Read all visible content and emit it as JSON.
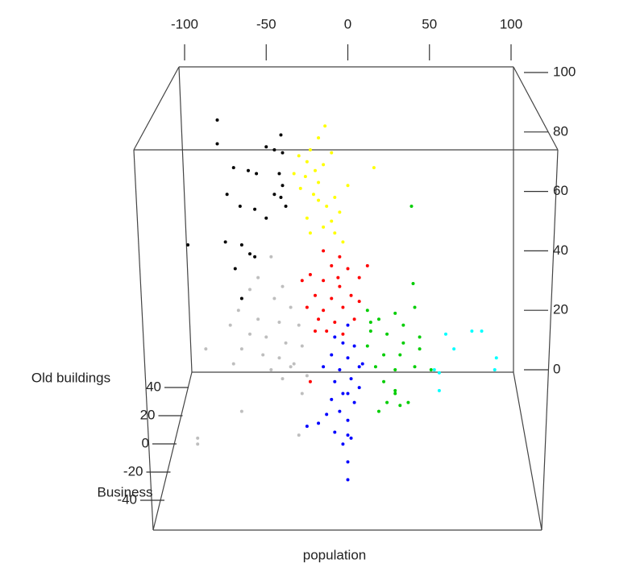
{
  "chart_data": {
    "type": "scatter3d",
    "xlabel": "population",
    "ylabel": "Business",
    "zlabel": "Old buildings",
    "xlim": [
      -100,
      100
    ],
    "xticks": [
      -100,
      -50,
      0,
      50,
      100
    ],
    "ylim": [
      -40,
      40
    ],
    "yticks": [
      40,
      20,
      0,
      -20,
      -40
    ],
    "zlim": [
      0,
      100
    ],
    "zticks": [
      0,
      20,
      40,
      60,
      80,
      100
    ],
    "series": [
      {
        "color": "#000000",
        "x": [
          -80,
          -80,
          -41,
          -50,
          -45,
          -40,
          -70,
          -61,
          -56,
          -42,
          -40,
          -74,
          -66,
          -57,
          -45,
          -41,
          -50,
          -75,
          -65,
          -57,
          -69,
          -98,
          -65,
          -60,
          -38
        ],
        "values": [
          84,
          76,
          79,
          75,
          74,
          73,
          68,
          67,
          66,
          66,
          62,
          59,
          55,
          54,
          59,
          58,
          51,
          43,
          42,
          38,
          34,
          42,
          24,
          39,
          55
        ]
      },
      {
        "color": "#ffff00",
        "x": [
          -14,
          -18,
          -23,
          -30,
          -25,
          -33,
          -26,
          -20,
          -15,
          -10,
          -29,
          -21,
          -18,
          -13,
          -8,
          -5,
          -10,
          -15,
          -23,
          -8,
          -3,
          -25,
          16,
          0,
          -18
        ],
        "values": [
          82,
          78,
          74,
          72,
          70,
          66,
          65,
          67,
          69,
          73,
          61,
          59,
          57,
          55,
          58,
          53,
          50,
          48,
          46,
          46,
          43,
          51,
          68,
          62,
          63
        ]
      },
      {
        "color": "#ff0000",
        "x": [
          -15,
          -5,
          -10,
          -23,
          0,
          7,
          -15,
          -5,
          -20,
          -10,
          2,
          12,
          -25,
          -15,
          -3,
          7,
          -18,
          -8,
          4,
          -13,
          -20,
          -28,
          -3,
          -23,
          -6
        ],
        "values": [
          40,
          38,
          35,
          32,
          34,
          31,
          30,
          28,
          25,
          24,
          25,
          35,
          21,
          20,
          21,
          23,
          17,
          16,
          17,
          13,
          13,
          30,
          12,
          -4,
          31
        ]
      },
      {
        "color": "#bebebe",
        "x": [
          -47,
          -55,
          -40,
          -60,
          -45,
          -35,
          -67,
          -55,
          -42,
          -30,
          -72,
          -60,
          -50,
          -38,
          -28,
          -65,
          -52,
          -42,
          -33,
          -70,
          -87,
          -25,
          -28,
          -65,
          -92,
          -92,
          -35,
          -47,
          -30,
          -40
        ],
        "values": [
          38,
          31,
          28,
          27,
          24,
          21,
          20,
          17,
          16,
          15,
          15,
          12,
          11,
          9,
          8,
          7,
          5,
          4,
          2,
          2,
          7,
          -2,
          -8,
          -14,
          -23,
          -25,
          1,
          0,
          -22,
          -3
        ]
      },
      {
        "color": "#0000ff",
        "x": [
          0,
          -3,
          4,
          -10,
          0,
          7,
          -5,
          -15,
          2,
          -8,
          7,
          -3,
          -10,
          4,
          -5,
          0,
          -13,
          -18,
          -8,
          0,
          -25,
          -3,
          2,
          0,
          0,
          9,
          -8,
          0
        ],
        "values": [
          15,
          9,
          8,
          5,
          4,
          1,
          0,
          1,
          -3,
          -4,
          -6,
          -8,
          -10,
          -11,
          -14,
          -17,
          -15,
          -18,
          -21,
          -22,
          -19,
          -25,
          -23,
          -31,
          -37,
          2,
          11,
          -8
        ]
      },
      {
        "color": "#00cd00",
        "x": [
          39,
          40,
          12,
          19,
          29,
          41,
          14,
          24,
          34,
          44,
          12,
          22,
          32,
          44,
          17,
          29,
          41,
          51,
          22,
          29,
          24,
          32,
          37,
          19,
          29,
          34,
          14
        ],
        "values": [
          55,
          29,
          20,
          17,
          19,
          21,
          13,
          12,
          15,
          11,
          8,
          5,
          5,
          7,
          1,
          0,
          1,
          0,
          -4,
          -8,
          -11,
          -12,
          -11,
          -14,
          -7,
          9,
          16
        ]
      },
      {
        "color": "#00ffff",
        "x": [
          60,
          65,
          76,
          82,
          91,
          90,
          56,
          56,
          53
        ],
        "values": [
          12,
          7,
          13,
          13,
          4,
          0,
          -1,
          -7,
          0
        ]
      }
    ]
  }
}
